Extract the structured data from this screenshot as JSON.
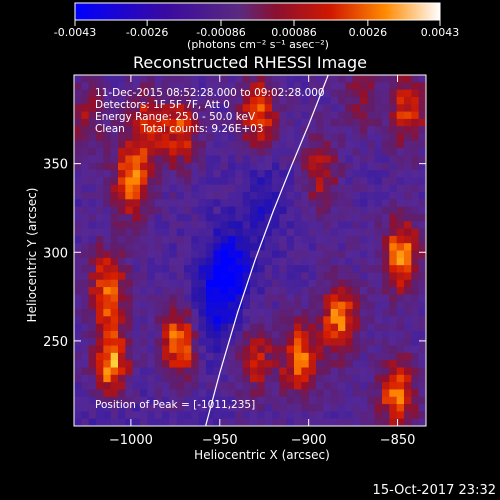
{
  "colorbar": {
    "ticks": [
      "-0.0043",
      "-0.0026",
      "-0.00086",
      "0.00086",
      "0.0026",
      "0.0043"
    ],
    "units_label": "(photons cm⁻² s⁻¹ asec⁻²)",
    "min": -0.0043,
    "max": 0.0043
  },
  "timestamp": "15-Oct-2017 23:32",
  "chart_data": {
    "type": "heatmap",
    "title": "Reconstructed RHESSI Image",
    "xlabel": "Heliocentric X (arcsec)",
    "ylabel": "Heliocentric Y (arcsec)",
    "xlim": [
      -1032,
      -834
    ],
    "ylim": [
      202,
      400
    ],
    "x_ticks": [
      -1000,
      -950,
      -900,
      -850
    ],
    "x_tick_labels": [
      "−1000",
      "−950",
      "−900",
      "−850"
    ],
    "y_ticks": [
      250,
      300,
      350
    ],
    "y_tick_labels": [
      "250",
      "300",
      "350"
    ],
    "grid": false,
    "annotations": {
      "time": "11-Dec-2015 08:52:28.000 to 09:02:28.000",
      "detectors": "Detectors: 1F 5F 7F, Att 0",
      "energy": "Energy Range: 25.0 - 50.0 keV",
      "method": "Clean     Total counts: 9.26E+03",
      "peak": "Position of Peak = [-1011,235]"
    },
    "limb_curve": {
      "x": [
        -958,
        -950,
        -940,
        -930,
        -920,
        -910,
        -900,
        -889
      ],
      "y": [
        202,
        232,
        266,
        296,
        323,
        348,
        372,
        400
      ]
    },
    "blobs": [
      {
        "x": -1011,
        "y": 235,
        "peak": 0.0043
      },
      {
        "x": -1013,
        "y": 280,
        "peak": 0.0036
      },
      {
        "x": -972,
        "y": 250,
        "peak": 0.004
      },
      {
        "x": -1000,
        "y": 340,
        "peak": 0.0036
      },
      {
        "x": -992,
        "y": 372,
        "peak": 0.0026
      },
      {
        "x": -972,
        "y": 368,
        "peak": 0.003
      },
      {
        "x": -928,
        "y": 378,
        "peak": 0.0034
      },
      {
        "x": -930,
        "y": 240,
        "peak": 0.0026
      },
      {
        "x": -905,
        "y": 240,
        "peak": 0.0036
      },
      {
        "x": -882,
        "y": 262,
        "peak": 0.0038
      },
      {
        "x": -893,
        "y": 345,
        "peak": 0.0024
      },
      {
        "x": -848,
        "y": 298,
        "peak": 0.004
      },
      {
        "x": -850,
        "y": 220,
        "peak": 0.0038
      },
      {
        "x": -844,
        "y": 380,
        "peak": 0.003
      },
      {
        "x": -870,
        "y": 388,
        "peak": 0.0018
      },
      {
        "x": -1025,
        "y": 375,
        "peak": 0.002
      }
    ],
    "dips": [
      {
        "x": -945,
        "y": 290,
        "value": -0.0043
      },
      {
        "x": -955,
        "y": 265,
        "value": -0.003
      },
      {
        "x": -925,
        "y": 330,
        "value": -0.0024
      },
      {
        "x": -1010,
        "y": 210,
        "value": -0.002
      }
    ]
  }
}
